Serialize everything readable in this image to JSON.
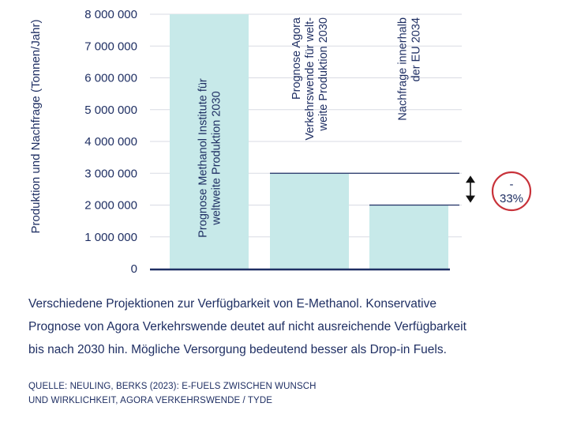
{
  "chart_data": {
    "type": "bar",
    "ylabel": "Produktion und Nachfrage (Tonnen/Jahr)",
    "ylim": [
      0,
      8000000
    ],
    "yticks": [
      0,
      1000000,
      2000000,
      3000000,
      4000000,
      5000000,
      6000000,
      7000000,
      8000000
    ],
    "ytick_labels": [
      "0",
      "1 000 000",
      "2 000 000",
      "3 000 000",
      "4 000 000",
      "5 000 000",
      "6 000 000",
      "7 000 000",
      "8 000 000"
    ],
    "grid": true,
    "bars": [
      {
        "label_lines": [
          "Prognose Methanol Institute für",
          "weltweite Produktion 2030"
        ],
        "value": 8000000
      },
      {
        "label_lines": [
          "Prognose Agora",
          "Verkehrswende für welt-",
          "weite Produktion 2030"
        ],
        "value": 3000000
      },
      {
        "label_lines": [
          "Nachfrage innerhalb",
          "der EU 2034"
        ],
        "value": 2000000
      }
    ],
    "annotation": {
      "lines": [
        "-",
        "33%"
      ]
    },
    "colors": {
      "bar": "#c7e9e9",
      "axis": "#1f2f63",
      "text": "#1f2f63",
      "badge_ring": "#c8323a",
      "grid": "#d9dbe3"
    }
  },
  "caption_lines": [
    "Verschiedene Projektionen zur Verfügbarkeit von E-Methanol. Konservative",
    "Prognose von Agora Verkehrswende deutet auf nicht ausreichende Verfügbarkeit",
    "bis nach 2030 hin. Mögliche Versorgung bedeutend besser als Drop-in Fuels."
  ],
  "source_lines": [
    "QUELLE: NEULING, BERKS (2023): E-FUELS ZWISCHEN WUNSCH",
    "UND WIRKLICHKEIT, AGORA VERKEHRSWENDE / TYDE"
  ]
}
